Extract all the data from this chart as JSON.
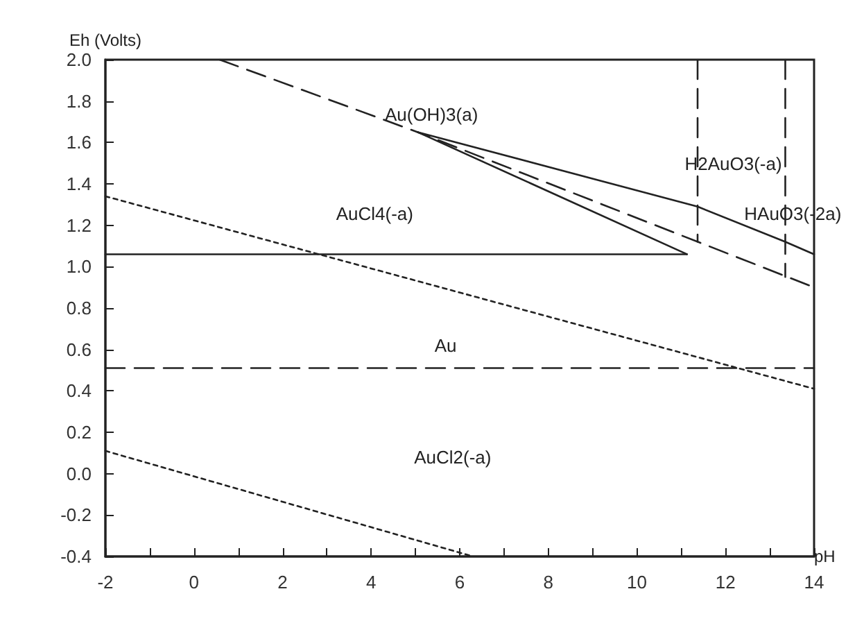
{
  "chart_data": {
    "type": "line",
    "xlabel": "pH",
    "ylabel": "Eh (Volts)",
    "xlim": [
      -2,
      14
    ],
    "ylim": [
      -0.4,
      2.0
    ],
    "xticks": [
      -2,
      {
        "value": -1,
        "label": null
      },
      0,
      {
        "value": 1,
        "label": null
      },
      2,
      {
        "value": 3,
        "label": null
      },
      4,
      {
        "value": 5,
        "label": null
      },
      6,
      {
        "value": 7,
        "label": null
      },
      8,
      {
        "value": 9,
        "label": null
      },
      10,
      {
        "value": 11,
        "label": null
      },
      12,
      {
        "value": 13,
        "label": null
      },
      14
    ],
    "yticks": [
      {
        "value": -0.4,
        "label": "-0.4"
      },
      {
        "value": -0.2,
        "label": "-0.2"
      },
      {
        "value": 0,
        "label": "0.0"
      },
      {
        "value": 0.2,
        "label": "0.2"
      },
      {
        "value": 0.4,
        "label": "0.4"
      },
      {
        "value": 0.6,
        "label": "0.6"
      },
      {
        "value": 0.8,
        "label": "0.8"
      },
      {
        "value": 1,
        "label": "1.0"
      },
      {
        "value": 1.2,
        "label": "1.2"
      },
      {
        "value": 1.4,
        "label": "1.4"
      },
      {
        "value": 1.6,
        "label": "1.6"
      },
      {
        "value": 1.8,
        "label": "1.8"
      },
      {
        "value": 2,
        "label": "2.0"
      }
    ],
    "grid": false,
    "marker": "none",
    "series": [
      {
        "color": "#222222",
        "line_style": "dashed",
        "x": [
          0.58,
          5.05,
          14
        ],
        "values": [
          2.0,
          1.65,
          0.9
        ]
      },
      {
        "color": "#222222",
        "line_style": "solid",
        "x": [
          5.05,
          11.37,
          13.35,
          14
        ],
        "values": [
          1.65,
          1.29,
          1.12,
          1.06
        ]
      },
      {
        "color": "#222222",
        "line_style": "solid",
        "x": [
          5.05,
          11.13
        ],
        "values": [
          1.65,
          1.06
        ]
      },
      {
        "color": "#222222",
        "line_style": "solid",
        "x": [
          -2,
          11.13
        ],
        "values": [
          1.06,
          1.06
        ]
      },
      {
        "color": "#222222",
        "line_style": "dashed",
        "x": [
          11.37,
          11.37
        ],
        "values": [
          2.0,
          1.12
        ]
      },
      {
        "color": "#222222",
        "line_style": "dashed",
        "x": [
          13.35,
          13.35
        ],
        "values": [
          2.0,
          0.95
        ]
      },
      {
        "color": "#222222",
        "line_style": "dashed",
        "x": [
          -2,
          14
        ],
        "values": [
          0.51,
          0.51
        ]
      },
      {
        "color": "#222222",
        "line_style": "dotted",
        "x": [
          -2,
          14
        ],
        "values": [
          1.34,
          0.41
        ]
      },
      {
        "color": "#222222",
        "line_style": "dotted",
        "x": [
          -2,
          6.3
        ],
        "values": [
          0.11,
          -0.4
        ]
      }
    ],
    "annotations": [
      "Au(OH)3(a)",
      "AuCl4(-a)",
      "H2AuO3(-a)",
      "HAuO3(-2a)",
      "Au",
      "AuCl2(-a)"
    ]
  }
}
